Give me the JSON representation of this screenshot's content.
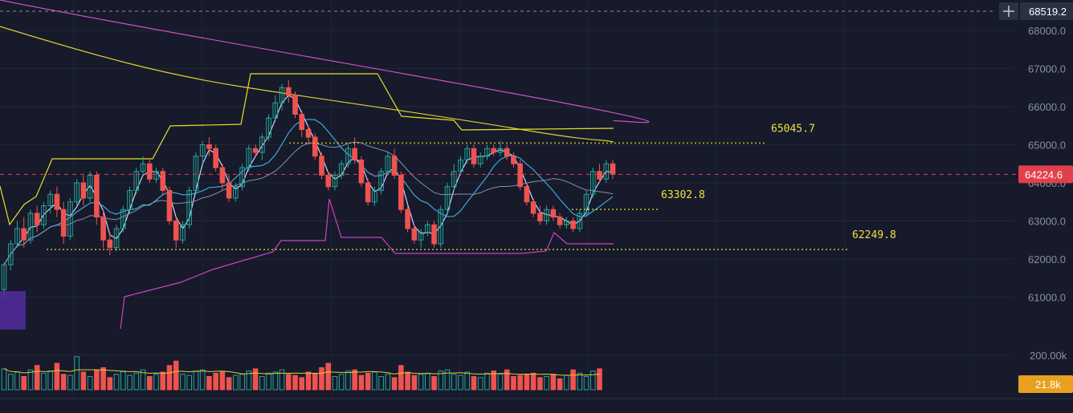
{
  "chart_data": {
    "type": "candlestick",
    "price_axis": {
      "ticks": [
        "68000.0",
        "67000.0",
        "66000.0",
        "65000.0",
        "64000.0",
        "63000.0",
        "62000.0",
        "61000.0"
      ],
      "ylim": [
        60300,
        68900
      ]
    },
    "volume_axis": {
      "ticks": [
        "200.00k"
      ]
    },
    "crosshair_label": "68519.2",
    "last_price": {
      "label": "64224.6",
      "value": 64224.6
    },
    "last_volume": {
      "label": "21.8k"
    },
    "levels": [
      {
        "label": "65045.7",
        "value": 65045.7
      },
      {
        "label": "63302.8",
        "value": 63302.8
      },
      {
        "label": "62249.8",
        "value": 62249.8
      }
    ],
    "candles": [
      [
        61200,
        61850,
        61000,
        61900
      ],
      [
        61850,
        62400,
        61700,
        62500
      ],
      [
        62400,
        62800,
        62300,
        63000
      ],
      [
        62800,
        62500,
        62300,
        63100
      ],
      [
        62500,
        63200,
        62400,
        63300
      ],
      [
        63200,
        62900,
        62700,
        63400
      ],
      [
        62900,
        63400,
        62800,
        63500
      ],
      [
        63400,
        63700,
        63200,
        63800
      ],
      [
        63700,
        63300,
        63100,
        63900
      ],
      [
        63300,
        62600,
        62400,
        63500
      ],
      [
        62600,
        63500,
        62500,
        63600
      ],
      [
        63500,
        64000,
        63400,
        64100
      ],
      [
        64000,
        63600,
        63400,
        64200
      ],
      [
        63600,
        64200,
        63500,
        64300
      ],
      [
        64200,
        63100,
        62900,
        64300
      ],
      [
        63100,
        62500,
        62300,
        63300
      ],
      [
        62500,
        62300,
        62100,
        62700
      ],
      [
        62300,
        62800,
        62200,
        62900
      ],
      [
        62800,
        63300,
        62700,
        63400
      ],
      [
        63300,
        63800,
        63200,
        63900
      ],
      [
        63800,
        64300,
        63700,
        64400
      ],
      [
        64300,
        64500,
        64200,
        64700
      ],
      [
        64500,
        64100,
        64000,
        64600
      ],
      [
        64100,
        64300,
        64000,
        64400
      ],
      [
        64300,
        63800,
        63700,
        64400
      ],
      [
        63800,
        63000,
        62900,
        63900
      ],
      [
        63000,
        62500,
        62300,
        63100
      ],
      [
        62500,
        62900,
        62400,
        63000
      ],
      [
        62900,
        63800,
        62800,
        63900
      ],
      [
        63800,
        64700,
        63700,
        64800
      ],
      [
        64700,
        65000,
        64500,
        65100
      ],
      [
        65000,
        64900,
        64700,
        65200
      ],
      [
        64900,
        64400,
        64300,
        65000
      ],
      [
        64400,
        64000,
        63800,
        64500
      ],
      [
        64000,
        63600,
        63500,
        64200
      ],
      [
        63600,
        63900,
        63500,
        64000
      ],
      [
        63900,
        64400,
        63800,
        64500
      ],
      [
        64400,
        64900,
        64300,
        65000
      ],
      [
        64900,
        64800,
        64700,
        65000
      ],
      [
        64800,
        65200,
        64600,
        65300
      ],
      [
        65200,
        65700,
        65100,
        65800
      ],
      [
        65700,
        66100,
        65600,
        66300
      ],
      [
        66100,
        66500,
        65900,
        66600
      ],
      [
        66500,
        66300,
        66100,
        66700
      ],
      [
        66300,
        65800,
        65700,
        66400
      ],
      [
        65800,
        65400,
        65200,
        65900
      ],
      [
        65400,
        65200,
        65000,
        65500
      ],
      [
        65200,
        64700,
        64600,
        65300
      ],
      [
        64700,
        64200,
        64100,
        64800
      ],
      [
        64200,
        63900,
        63800,
        64300
      ],
      [
        63900,
        64200,
        63800,
        64300
      ],
      [
        64200,
        64500,
        64100,
        64600
      ],
      [
        64500,
        64900,
        64400,
        65000
      ],
      [
        64900,
        64600,
        64500,
        65200
      ],
      [
        64600,
        64000,
        63900,
        64700
      ],
      [
        64000,
        63500,
        63400,
        64100
      ],
      [
        63500,
        63800,
        63400,
        63900
      ],
      [
        63800,
        64300,
        63700,
        64400
      ],
      [
        64300,
        64700,
        64200,
        64800
      ],
      [
        64700,
        64200,
        64100,
        64900
      ],
      [
        64200,
        63300,
        63200,
        64300
      ],
      [
        63300,
        62800,
        62700,
        63400
      ],
      [
        62800,
        62500,
        62400,
        62900
      ],
      [
        62500,
        62700,
        62300,
        62800
      ],
      [
        62700,
        62900,
        62600,
        63000
      ],
      [
        62900,
        62400,
        62300,
        63000
      ],
      [
        62400,
        63300,
        62300,
        63400
      ],
      [
        63300,
        63900,
        63200,
        64000
      ],
      [
        63900,
        64300,
        63800,
        64500
      ],
      [
        64300,
        64600,
        64200,
        64700
      ],
      [
        64600,
        64900,
        64500,
        65000
      ],
      [
        64900,
        64500,
        64400,
        65000
      ],
      [
        64500,
        64700,
        64400,
        64800
      ],
      [
        64700,
        64900,
        64600,
        65000
      ],
      [
        64900,
        64800,
        64700,
        65000
      ],
      [
        64800,
        64900,
        64700,
        65100
      ],
      [
        64900,
        64700,
        64600,
        65000
      ],
      [
        64700,
        64500,
        64400,
        64800
      ],
      [
        64500,
        63900,
        63800,
        64600
      ],
      [
        63900,
        63500,
        63400,
        64000
      ],
      [
        63500,
        63200,
        63100,
        63600
      ],
      [
        63200,
        63000,
        62900,
        63400
      ],
      [
        63000,
        63300,
        62900,
        63400
      ],
      [
        63300,
        63100,
        63000,
        63400
      ],
      [
        63100,
        62900,
        62800,
        63200
      ],
      [
        62900,
        63000,
        62800,
        63100
      ],
      [
        63000,
        62800,
        62700,
        63100
      ],
      [
        62800,
        63200,
        62700,
        63300
      ],
      [
        63200,
        63700,
        63100,
        63800
      ],
      [
        63700,
        64300,
        63600,
        64400
      ],
      [
        64300,
        64100,
        64000,
        64500
      ],
      [
        64100,
        64500,
        64000,
        64600
      ],
      [
        64500,
        64224.6,
        64100,
        64600
      ]
    ],
    "volumes": [
      95,
      70,
      80,
      60,
      90,
      110,
      75,
      85,
      120,
      70,
      65,
      150,
      80,
      60,
      90,
      100,
      55,
      70,
      85,
      65,
      75,
      90,
      60,
      70,
      80,
      110,
      130,
      70,
      65,
      85,
      90,
      60,
      75,
      80,
      55,
      65,
      70,
      85,
      95,
      60,
      75,
      80,
      90,
      70,
      65,
      55,
      80,
      75,
      100,
      120,
      60,
      70,
      85,
      90,
      65,
      75,
      80,
      60,
      70,
      55,
      110,
      80,
      65,
      70,
      75,
      60,
      85,
      90,
      70,
      65,
      80,
      60,
      55,
      75,
      85,
      70,
      90,
      60,
      65,
      70,
      75,
      55,
      60,
      70,
      50,
      65,
      90,
      75,
      60,
      85,
      95
    ]
  }
}
